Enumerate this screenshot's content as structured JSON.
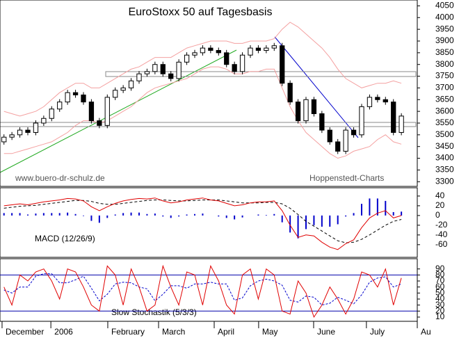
{
  "chart_data": [
    {
      "type": "candlestick",
      "title": "EuroStoxx 50 auf Tagesbasis",
      "annotations": [
        "www.buero-dr-schulz.de",
        "Hoppenstedt-Charts"
      ],
      "open": [
        3470,
        3490,
        3500,
        3520,
        3510,
        3550,
        3570,
        3610,
        3640,
        3680,
        3670,
        3640,
        3560,
        3540,
        3660,
        3690,
        3700,
        3730,
        3760,
        3770,
        3800,
        3760,
        3740,
        3810,
        3840,
        3850,
        3870,
        3860,
        3850,
        3800,
        3770,
        3840,
        3870,
        3860,
        3870,
        3880,
        3720,
        3640,
        3560,
        3650,
        3590,
        3520,
        3470,
        3430,
        3520,
        3500,
        3620,
        3660,
        3650,
        3640,
        3510
      ],
      "high": [
        3502,
        3512,
        3532,
        3532,
        3562,
        3582,
        3622,
        3652,
        3692,
        3692,
        3682,
        3652,
        3572,
        3672,
        3702,
        3712,
        3742,
        3772,
        3782,
        3812,
        3812,
        3772,
        3822,
        3852,
        3862,
        3882,
        3882,
        3872,
        3862,
        3812,
        3852,
        3882,
        3882,
        3882,
        3892,
        3892,
        3732,
        3652,
        3662,
        3662,
        3602,
        3532,
        3482,
        3532,
        3532,
        3632,
        3672,
        3672,
        3662,
        3652,
        3592
      ],
      "low": [
        3458,
        3478,
        3488,
        3498,
        3498,
        3538,
        3558,
        3598,
        3628,
        3658,
        3628,
        3548,
        3528,
        3528,
        3648,
        3678,
        3688,
        3718,
        3748,
        3758,
        3748,
        3728,
        3728,
        3798,
        3828,
        3838,
        3848,
        3838,
        3788,
        3758,
        3758,
        3828,
        3848,
        3848,
        3858,
        3708,
        3628,
        3548,
        3548,
        3578,
        3508,
        3458,
        3418,
        3418,
        3488,
        3488,
        3608,
        3638,
        3628,
        3498,
        3498
      ],
      "close": [
        3490,
        3500,
        3520,
        3510,
        3550,
        3570,
        3610,
        3640,
        3680,
        3670,
        3640,
        3560,
        3540,
        3660,
        3690,
        3700,
        3730,
        3760,
        3770,
        3800,
        3760,
        3740,
        3810,
        3840,
        3850,
        3870,
        3860,
        3850,
        3800,
        3770,
        3840,
        3870,
        3860,
        3870,
        3880,
        3720,
        3640,
        3560,
        3650,
        3590,
        3520,
        3470,
        3430,
        3520,
        3500,
        3620,
        3660,
        3650,
        3640,
        3510,
        3580
      ],
      "upper_band": {
        "color": "#f4a0a0",
        "values": [
          3600,
          3590,
          3580,
          3590,
          3600,
          3620,
          3650,
          3680,
          3700,
          3720,
          3720,
          3700,
          3700,
          3720,
          3740,
          3760,
          3780,
          3790,
          3810,
          3830,
          3830,
          3830,
          3850,
          3870,
          3880,
          3890,
          3900,
          3900,
          3900,
          3890,
          3890,
          3900,
          3900,
          3900,
          3910,
          3950,
          3980,
          3960,
          3930,
          3900,
          3870,
          3830,
          3780,
          3740,
          3720,
          3700,
          3710,
          3720,
          3720,
          3730,
          3720
        ]
      },
      "lower_band": {
        "color": "#f4a0a0",
        "values": [
          3420,
          3420,
          3430,
          3440,
          3450,
          3460,
          3470,
          3490,
          3510,
          3540,
          3560,
          3560,
          3550,
          3560,
          3580,
          3600,
          3620,
          3650,
          3680,
          3700,
          3710,
          3720,
          3730,
          3740,
          3760,
          3780,
          3790,
          3790,
          3780,
          3760,
          3760,
          3770,
          3770,
          3780,
          3780,
          3700,
          3620,
          3560,
          3510,
          3480,
          3450,
          3420,
          3400,
          3410,
          3430,
          3440,
          3450,
          3480,
          3500,
          3470,
          3460
        ]
      },
      "ylim": [
        3280,
        4075
      ],
      "yticks": [
        3300,
        3350,
        3400,
        3450,
        3500,
        3550,
        3600,
        3650,
        3700,
        3750,
        3800,
        3850,
        3900,
        3950,
        4000,
        4050
      ]
    },
    {
      "type": "macd",
      "label": "MACD (12/26/9)",
      "macd": {
        "color": "#e00000",
        "values": [
          20,
          22,
          24,
          22,
          25,
          28,
          30,
          32,
          35,
          34,
          30,
          18,
          10,
          18,
          25,
          30,
          33,
          35,
          34,
          36,
          30,
          26,
          28,
          32,
          34,
          36,
          32,
          30,
          25,
          20,
          22,
          26,
          28,
          28,
          30,
          10,
          -20,
          -45,
          -40,
          -42,
          -55,
          -65,
          -70,
          -58,
          -50,
          -25,
          -5,
          5,
          10,
          -5,
          0
        ]
      },
      "signal": {
        "color": "#000000",
        "values": [
          15,
          17,
          19,
          20,
          21,
          23,
          25,
          27,
          29,
          31,
          31,
          29,
          25,
          23,
          23,
          25,
          27,
          29,
          31,
          32,
          32,
          31,
          30,
          30,
          31,
          32,
          32,
          32,
          30,
          28,
          26,
          26,
          26,
          27,
          27,
          24,
          15,
          2,
          -12,
          -22,
          -32,
          -42,
          -52,
          -56,
          -55,
          -49,
          -40,
          -30,
          -20,
          -12,
          -8
        ]
      },
      "histogram": {
        "color": "#0000cc",
        "values": [
          5,
          5,
          5,
          2,
          4,
          5,
          5,
          5,
          6,
          3,
          -1,
          -11,
          -15,
          -5,
          2,
          5,
          6,
          6,
          3,
          4,
          -2,
          -5,
          -2,
          2,
          3,
          4,
          0,
          -2,
          -5,
          -8,
          -4,
          0,
          2,
          1,
          3,
          -14,
          -35,
          -47,
          -28,
          -20,
          -23,
          -23,
          -18,
          -2,
          5,
          24,
          35,
          35,
          30,
          7,
          8
        ]
      },
      "ylim": [
        -86,
        57
      ],
      "yticks": [
        -60,
        -40,
        -20,
        0,
        20,
        40
      ]
    },
    {
      "type": "stochastic",
      "label": "Slow Stochastik (5/3/3)",
      "k": {
        "color": "#e00000",
        "values": [
          60,
          30,
          80,
          70,
          85,
          90,
          70,
          40,
          90,
          85,
          60,
          30,
          20,
          95,
          80,
          30,
          90,
          60,
          20,
          30,
          95,
          60,
          30,
          85,
          80,
          30,
          95,
          70,
          30,
          15,
          80,
          90,
          40,
          90,
          80,
          20,
          15,
          70,
          50,
          10,
          30,
          60,
          40,
          15,
          40,
          85,
          80,
          60,
          90,
          30,
          75
        ]
      },
      "d": {
        "color": "#0000cc",
        "values": [
          55,
          50,
          60,
          60,
          78,
          82,
          82,
          67,
          67,
          72,
          78,
          58,
          37,
          48,
          65,
          68,
          67,
          60,
          57,
          37,
          48,
          62,
          62,
          58,
          65,
          65,
          68,
          65,
          65,
          38,
          42,
          62,
          70,
          73,
          70,
          63,
          38,
          35,
          45,
          43,
          30,
          33,
          43,
          38,
          32,
          47,
          68,
          75,
          77,
          60,
          65
        ]
      },
      "levels": [
        80,
        20
      ],
      "level_color": "#0000aa",
      "ylim": [
        3,
        107
      ],
      "yticks": [
        10,
        20,
        30,
        40,
        50,
        60,
        70,
        80,
        90
      ],
      "xlim": [
        -0.5,
        52
      ],
      "xticks": [
        {
          "value": -0.24,
          "label": "December"
        },
        {
          "value": 5.9,
          "label": "2006"
        },
        {
          "value": 13.06,
          "label": "February"
        },
        {
          "value": 19.45,
          "label": "March"
        },
        {
          "value": 26.45,
          "label": "April"
        },
        {
          "value": 32.04,
          "label": "May"
        },
        {
          "value": 38.96,
          "label": "June"
        },
        {
          "value": 45.6,
          "label": "July"
        },
        {
          "value": 52,
          "label": "Au"
        }
      ]
    }
  ]
}
